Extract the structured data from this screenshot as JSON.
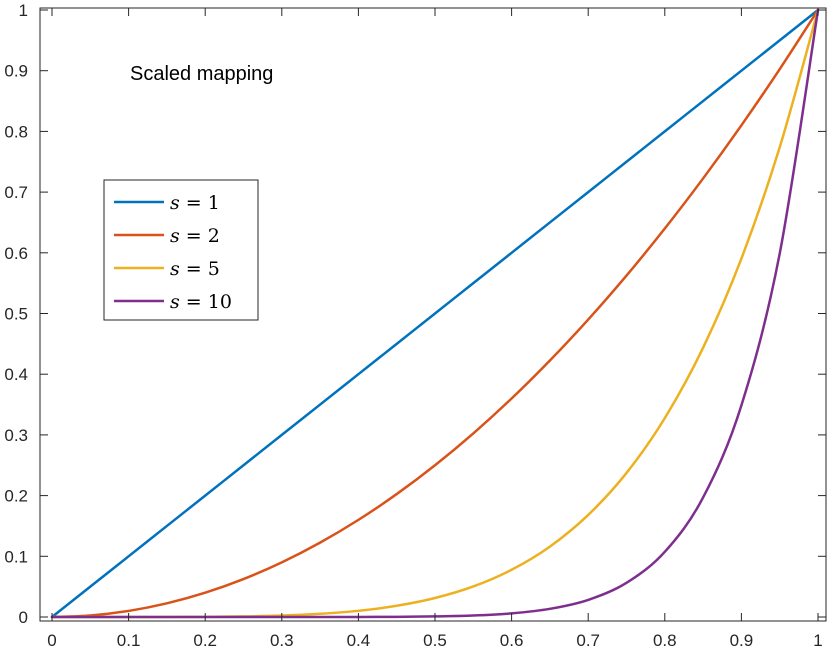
{
  "chart_data": {
    "type": "line",
    "title": "",
    "annotation": "Scaled mapping",
    "xlabel": "",
    "ylabel": "",
    "xlim": [
      0,
      1
    ],
    "ylim": [
      0,
      1
    ],
    "xticks": [
      0,
      0.1,
      0.2,
      0.3,
      0.4,
      0.5,
      0.6,
      0.7,
      0.8,
      0.9,
      1
    ],
    "yticks": [
      0,
      0.1,
      0.2,
      0.3,
      0.4,
      0.5,
      0.6,
      0.7,
      0.8,
      0.9,
      1
    ],
    "xtick_labels": [
      "0",
      "0.1",
      "0.2",
      "0.3",
      "0.4",
      "0.5",
      "0.6",
      "0.7",
      "0.8",
      "0.9",
      "1"
    ],
    "ytick_labels": [
      "0",
      "0.1",
      "0.2",
      "0.3",
      "0.4",
      "0.5",
      "0.6",
      "0.7",
      "0.8",
      "0.9",
      "1"
    ],
    "grid": false,
    "legend_position": "middle-left",
    "x": [
      0,
      0.05,
      0.1,
      0.15,
      0.2,
      0.25,
      0.3,
      0.35,
      0.4,
      0.45,
      0.5,
      0.55,
      0.6,
      0.65,
      0.7,
      0.75,
      0.8,
      0.85,
      0.9,
      0.95,
      1
    ],
    "series": [
      {
        "name": "s = 1",
        "var": "s",
        "op": "=",
        "num": "1",
        "color": "#0072BD",
        "values": [
          0,
          0.05,
          0.1,
          0.15,
          0.2,
          0.25,
          0.3,
          0.35,
          0.4,
          0.45,
          0.5,
          0.55,
          0.6,
          0.65,
          0.7,
          0.75,
          0.8,
          0.85,
          0.9,
          0.95,
          1
        ]
      },
      {
        "name": "s = 2",
        "var": "s",
        "op": "=",
        "num": "2",
        "color": "#D95319",
        "values": [
          0,
          0.0025,
          0.01,
          0.0225,
          0.04,
          0.0625,
          0.09,
          0.1225,
          0.16,
          0.2025,
          0.25,
          0.3025,
          0.36,
          0.4225,
          0.49,
          0.5625,
          0.64,
          0.7225,
          0.81,
          0.9025,
          1
        ]
      },
      {
        "name": "s = 5",
        "var": "s",
        "op": "=",
        "num": "5",
        "color": "#EDB120",
        "values": [
          0,
          0,
          0.0,
          0.0001,
          0.0003,
          0.001,
          0.0024,
          0.0053,
          0.0102,
          0.0185,
          0.0313,
          0.0503,
          0.0778,
          0.116,
          0.1681,
          0.2373,
          0.3277,
          0.4437,
          0.5905,
          0.7738,
          1
        ]
      },
      {
        "name": "s = 10",
        "var": "s",
        "op": "=",
        "num": "10",
        "color": "#7E2F8E",
        "values": [
          0,
          0,
          0,
          0,
          0,
          0.0,
          0.0,
          0.0,
          0.0001,
          0.0003,
          0.001,
          0.0025,
          0.006,
          0.0135,
          0.0282,
          0.0563,
          0.1074,
          0.1969,
          0.3487,
          0.5987,
          1
        ]
      }
    ]
  }
}
